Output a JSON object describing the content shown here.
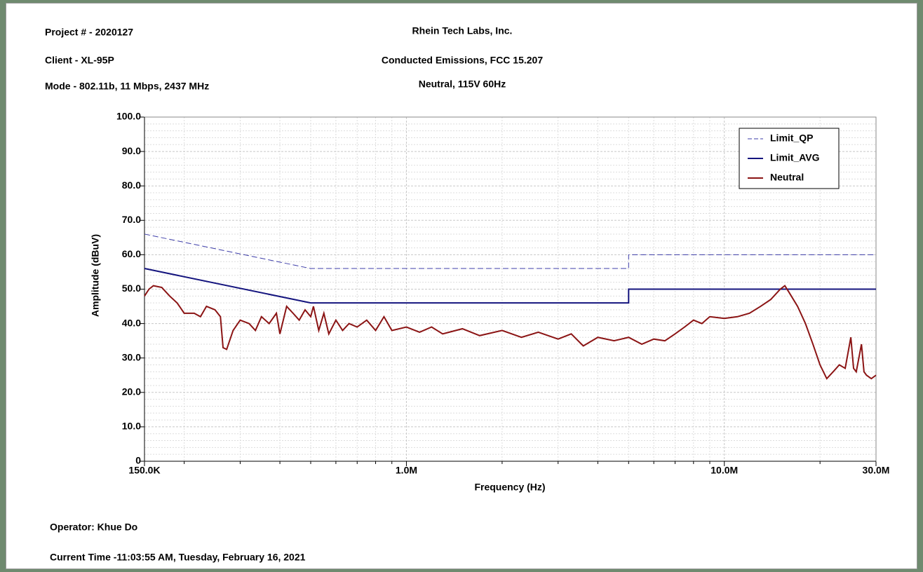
{
  "chart_data": {
    "type": "line",
    "header_left": [
      "Project # - 2020127",
      "Client - XL-95P",
      "Mode - 802.11b, 11 Mbps, 2437 MHz"
    ],
    "title": "Rhein Tech Labs, Inc.",
    "subtitle": [
      "Conducted Emissions, FCC 15.207",
      "Neutral, 115V 60Hz"
    ],
    "xlabel": "Frequency (Hz)",
    "ylabel": "Amplitude (dBuV)",
    "footer": [
      "Operator: Khue Do",
      "Current Time -11:03:55 AM, Tuesday, February 16, 2021"
    ],
    "xscale": "log",
    "xlim": [
      150000,
      30000000
    ],
    "xticks": [
      {
        "value": 150000,
        "label": "150.0K"
      },
      {
        "value": 1000000,
        "label": "1.0M"
      },
      {
        "value": 10000000,
        "label": "10.0M"
      },
      {
        "value": 30000000,
        "label": "30.0M"
      }
    ],
    "xminorticks": [
      200000,
      300000,
      400000,
      500000,
      600000,
      700000,
      800000,
      900000,
      2000000,
      3000000,
      4000000,
      5000000,
      6000000,
      7000000,
      8000000,
      9000000,
      20000000
    ],
    "ylim": [
      0,
      100
    ],
    "yticks": [
      {
        "value": 0,
        "label": "0"
      },
      {
        "value": 10,
        "label": "10.0"
      },
      {
        "value": 20,
        "label": "20.0"
      },
      {
        "value": 30,
        "label": "30.0"
      },
      {
        "value": 40,
        "label": "40.0"
      },
      {
        "value": 50,
        "label": "50.0"
      },
      {
        "value": 60,
        "label": "60.0"
      },
      {
        "value": 70,
        "label": "70.0"
      },
      {
        "value": 80,
        "label": "80.0"
      },
      {
        "value": 90,
        "label": "90.0"
      },
      {
        "value": 100,
        "label": "100.0"
      }
    ],
    "yminorticks": [
      2,
      4,
      6,
      8,
      12,
      14,
      16,
      18,
      22,
      24,
      26,
      28,
      32,
      34,
      36,
      38,
      42,
      44,
      46,
      48,
      52,
      54,
      56,
      58,
      62,
      64,
      66,
      68,
      72,
      74,
      76,
      78,
      82,
      84,
      86,
      88,
      92,
      94,
      96,
      98
    ],
    "grid": true,
    "legend": "upper right",
    "series": [
      {
        "name": "Limit_QP",
        "color": "#3c3ca8",
        "dash": true,
        "x": [
          150000,
          500000,
          5000000,
          5000000,
          30000000
        ],
        "values": [
          66,
          56,
          56,
          60,
          60
        ]
      },
      {
        "name": "Limit_AVG",
        "color": "#14147e",
        "dash": false,
        "x": [
          150000,
          500000,
          5000000,
          5000000,
          30000000
        ],
        "values": [
          56,
          46,
          46,
          50,
          50
        ]
      },
      {
        "name": "Neutral",
        "color": "#8b1414",
        "dash": false,
        "x": [
          150000,
          155000,
          160000,
          170000,
          180000,
          190000,
          200000,
          215000,
          225000,
          235000,
          250000,
          260000,
          265000,
          272000,
          285000,
          300000,
          320000,
          335000,
          350000,
          370000,
          390000,
          400000,
          420000,
          440000,
          460000,
          480000,
          500000,
          510000,
          530000,
          550000,
          570000,
          600000,
          630000,
          660000,
          700000,
          750000,
          800000,
          850000,
          900000,
          1000000,
          1100000,
          1200000,
          1300000,
          1500000,
          1700000,
          2000000,
          2300000,
          2600000,
          3000000,
          3300000,
          3600000,
          4000000,
          4500000,
          5000000,
          5500000,
          6000000,
          6500000,
          7000000,
          7500000,
          8000000,
          8500000,
          9000000,
          10000000,
          11000000,
          12000000,
          13000000,
          14000000,
          15000000,
          15500000,
          16000000,
          17000000,
          18000000,
          19000000,
          20000000,
          21000000,
          22000000,
          23000000,
          24000000,
          25000000,
          25500000,
          26000000,
          27000000,
          27500000,
          28000000,
          29000000,
          30000000
        ],
        "values": [
          48,
          50,
          51,
          50.5,
          48,
          46,
          43,
          43,
          42,
          45,
          44,
          42,
          33,
          32.5,
          38,
          41,
          40,
          38,
          42,
          40,
          43,
          37,
          45,
          43,
          41,
          44,
          42,
          45,
          38,
          43,
          37,
          41,
          38,
          40,
          39,
          41,
          38,
          42,
          38,
          39,
          37.5,
          39,
          37,
          38.5,
          36.5,
          38,
          36,
          37.5,
          35.5,
          37,
          33.5,
          36,
          35,
          36,
          34,
          35.5,
          35,
          37,
          39,
          41,
          40,
          42,
          41.5,
          42,
          43,
          45,
          47,
          50,
          51,
          49,
          45,
          40,
          34,
          28,
          24,
          26,
          28,
          27,
          36,
          27,
          26,
          34,
          26,
          25,
          24,
          25
        ]
      }
    ]
  }
}
